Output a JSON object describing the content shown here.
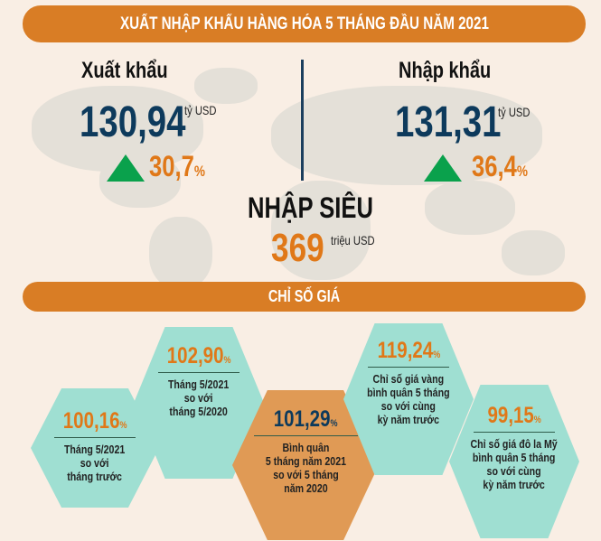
{
  "header": {
    "title": "XUẤT NHẬP KHẨU HÀNG HÓA  5 THÁNG ĐẦU NĂM 2021"
  },
  "export": {
    "label": "Xuất khẩu",
    "value": "130,94",
    "unit": "tỷ USD",
    "change": "30,7",
    "change_unit": "%",
    "trend_icon": "triangle-up"
  },
  "import": {
    "label": "Nhập khẩu",
    "value": "131,31",
    "unit": "tỷ USD",
    "change": "36,4",
    "change_unit": "%",
    "trend_icon": "triangle-up"
  },
  "deficit": {
    "label": "NHẬP SIÊU",
    "value": "369",
    "unit": "triệu USD"
  },
  "price_section": {
    "title": "CHỈ SỐ GIÁ"
  },
  "indices": [
    {
      "value": "100,16",
      "unit": "%",
      "lines": [
        "Tháng 5/2021",
        "so với",
        "tháng trước"
      ]
    },
    {
      "value": "102,90",
      "unit": "%",
      "lines": [
        "Tháng 5/2021",
        "so với",
        "tháng 5/2020"
      ]
    },
    {
      "value": "101,29",
      "unit": "%",
      "lines": [
        "Bình quân",
        "5 tháng năm 2021",
        "so với 5 tháng",
        "năm 2020"
      ]
    },
    {
      "value": "119,24",
      "unit": "%",
      "lines": [
        "Chỉ số giá vàng",
        "bình quân 5 tháng",
        "so với cùng",
        "kỳ năm trước"
      ]
    },
    {
      "value": "99,15",
      "unit": "%",
      "lines": [
        "Chỉ số giá đô la Mỹ",
        "bình quân 5 tháng",
        "so với cùng",
        "kỳ năm trước"
      ]
    }
  ],
  "colors": {
    "background": "#f9eee4",
    "accent": "#d97d25",
    "navy": "#0d3a5c",
    "orange_text": "#e07818",
    "teal": "#9fdfd2",
    "green": "#0aa14c"
  }
}
